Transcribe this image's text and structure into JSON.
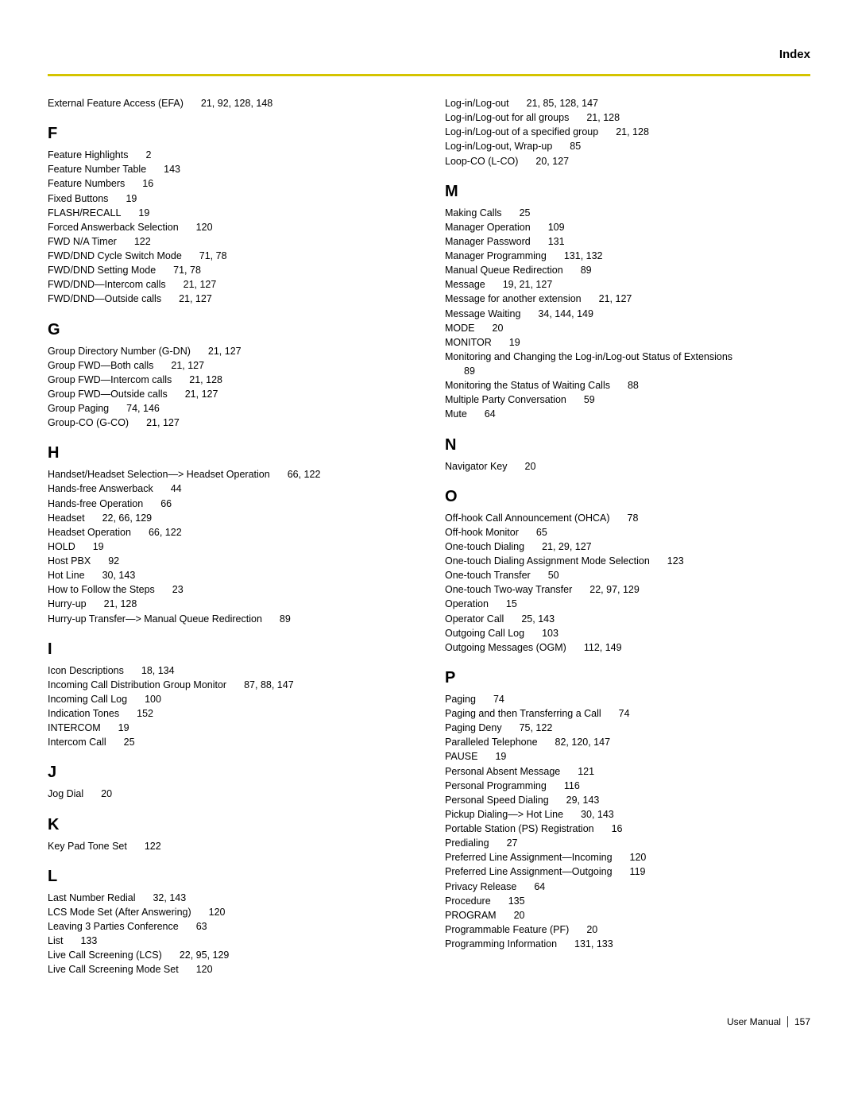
{
  "header": "Index",
  "footer": {
    "label": "User Manual",
    "page": "157"
  },
  "left": [
    {
      "type": "entry",
      "term": "External Feature Access (EFA)",
      "pages": "21, 92, 128, 148"
    },
    {
      "type": "letter",
      "text": "F"
    },
    {
      "type": "entry",
      "term": "Feature Highlights",
      "pages": "2"
    },
    {
      "type": "entry",
      "term": "Feature Number Table",
      "pages": "143"
    },
    {
      "type": "entry",
      "term": "Feature Numbers",
      "pages": "16"
    },
    {
      "type": "entry",
      "term": "Fixed Buttons",
      "pages": "19"
    },
    {
      "type": "entry",
      "term": "FLASH/RECALL",
      "pages": "19"
    },
    {
      "type": "entry",
      "term": "Forced Answerback Selection",
      "pages": "120"
    },
    {
      "type": "entry",
      "term": "FWD N/A Timer",
      "pages": "122"
    },
    {
      "type": "entry",
      "term": "FWD/DND Cycle Switch Mode",
      "pages": "71, 78"
    },
    {
      "type": "entry",
      "term": "FWD/DND Setting Mode",
      "pages": "71, 78"
    },
    {
      "type": "entry",
      "term": "FWD/DND—Intercom calls",
      "pages": "21, 127"
    },
    {
      "type": "entry",
      "term": "FWD/DND—Outside calls",
      "pages": "21, 127"
    },
    {
      "type": "letter",
      "text": "G"
    },
    {
      "type": "entry",
      "term": "Group Directory Number (G-DN)",
      "pages": "21, 127"
    },
    {
      "type": "entry",
      "term": "Group FWD—Both calls",
      "pages": "21, 127"
    },
    {
      "type": "entry",
      "term": "Group FWD—Intercom calls",
      "pages": "21, 128"
    },
    {
      "type": "entry",
      "term": "Group FWD—Outside calls",
      "pages": "21, 127"
    },
    {
      "type": "entry",
      "term": "Group Paging",
      "pages": "74, 146"
    },
    {
      "type": "entry",
      "term": "Group-CO (G-CO)",
      "pages": "21, 127"
    },
    {
      "type": "letter",
      "text": "H"
    },
    {
      "type": "entry",
      "term": "Handset/Headset Selection—> Headset Operation",
      "pages": "66, 122"
    },
    {
      "type": "entry",
      "term": "Hands-free Answerback",
      "pages": "44"
    },
    {
      "type": "entry",
      "term": "Hands-free Operation",
      "pages": "66"
    },
    {
      "type": "entry",
      "term": "Headset",
      "pages": "22, 66, 129"
    },
    {
      "type": "entry",
      "term": "Headset Operation",
      "pages": "66, 122"
    },
    {
      "type": "entry",
      "term": "HOLD",
      "pages": "19"
    },
    {
      "type": "entry",
      "term": "Host PBX",
      "pages": "92"
    },
    {
      "type": "entry",
      "term": "Hot Line",
      "pages": "30, 143"
    },
    {
      "type": "entry",
      "term": "How to Follow the Steps",
      "pages": "23"
    },
    {
      "type": "entry",
      "term": "Hurry-up",
      "pages": "21, 128"
    },
    {
      "type": "entry",
      "term": "Hurry-up Transfer—> Manual Queue Redirection",
      "pages": "89"
    },
    {
      "type": "letter",
      "text": "I"
    },
    {
      "type": "entry",
      "term": "Icon Descriptions",
      "pages": "18, 134"
    },
    {
      "type": "entry",
      "term": "Incoming Call Distribution Group Monitor",
      "pages": "87, 88, 147"
    },
    {
      "type": "entry",
      "term": "Incoming Call Log",
      "pages": "100"
    },
    {
      "type": "entry",
      "term": "Indication Tones",
      "pages": "152"
    },
    {
      "type": "entry",
      "term": "INTERCOM",
      "pages": "19"
    },
    {
      "type": "entry",
      "term": "Intercom Call",
      "pages": "25"
    },
    {
      "type": "letter",
      "text": "J"
    },
    {
      "type": "entry",
      "term": "Jog Dial",
      "pages": "20"
    },
    {
      "type": "letter",
      "text": "K"
    },
    {
      "type": "entry",
      "term": "Key Pad Tone Set",
      "pages": "122"
    },
    {
      "type": "letter",
      "text": "L"
    },
    {
      "type": "entry",
      "term": "Last Number Redial",
      "pages": "32, 143"
    },
    {
      "type": "entry",
      "term": "LCS Mode Set (After Answering)",
      "pages": "120"
    },
    {
      "type": "entry",
      "term": "Leaving 3 Parties Conference",
      "pages": "63"
    },
    {
      "type": "entry",
      "term": "List",
      "pages": "133"
    },
    {
      "type": "entry",
      "term": "Live Call Screening (LCS)",
      "pages": "22, 95, 129"
    },
    {
      "type": "entry",
      "term": "Live Call Screening Mode Set",
      "pages": "120"
    }
  ],
  "right": [
    {
      "type": "entry",
      "term": "Log-in/Log-out",
      "pages": "21, 85, 128, 147"
    },
    {
      "type": "entry",
      "term": "Log-in/Log-out for all groups",
      "pages": "21, 128"
    },
    {
      "type": "entry",
      "term": "Log-in/Log-out of a specified group",
      "pages": "21, 128"
    },
    {
      "type": "entry",
      "term": "Log-in/Log-out, Wrap-up",
      "pages": "85"
    },
    {
      "type": "entry",
      "term": "Loop-CO (L-CO)",
      "pages": "20, 127"
    },
    {
      "type": "letter",
      "text": "M"
    },
    {
      "type": "entry",
      "term": "Making Calls",
      "pages": "25"
    },
    {
      "type": "entry",
      "term": "Manager Operation",
      "pages": "109"
    },
    {
      "type": "entry",
      "term": "Manager Password",
      "pages": "131"
    },
    {
      "type": "entry",
      "term": "Manager Programming",
      "pages": "131, 132"
    },
    {
      "type": "entry",
      "term": "Manual Queue Redirection",
      "pages": "89"
    },
    {
      "type": "entry",
      "term": "Message",
      "pages": "19, 21, 127"
    },
    {
      "type": "entry",
      "term": "Message for another extension",
      "pages": "21, 127"
    },
    {
      "type": "entry",
      "term": "Message Waiting",
      "pages": "34, 144, 149"
    },
    {
      "type": "entry",
      "term": "MODE",
      "pages": "20"
    },
    {
      "type": "entry",
      "term": "MONITOR",
      "pages": "19"
    },
    {
      "type": "entry",
      "term": "Monitoring and Changing the Log-in/Log-out Status of Extensions",
      "pages": "89",
      "wrap": true
    },
    {
      "type": "entry",
      "term": "Monitoring the Status of Waiting Calls",
      "pages": "88"
    },
    {
      "type": "entry",
      "term": "Multiple Party Conversation",
      "pages": "59"
    },
    {
      "type": "entry",
      "term": "Mute",
      "pages": "64"
    },
    {
      "type": "letter",
      "text": "N"
    },
    {
      "type": "entry",
      "term": "Navigator Key",
      "pages": "20"
    },
    {
      "type": "letter",
      "text": "O"
    },
    {
      "type": "entry",
      "term": "Off-hook Call Announcement (OHCA)",
      "pages": "78"
    },
    {
      "type": "entry",
      "term": "Off-hook Monitor",
      "pages": "65"
    },
    {
      "type": "entry",
      "term": "One-touch Dialing",
      "pages": "21, 29, 127"
    },
    {
      "type": "entry",
      "term": "One-touch Dialing Assignment Mode Selection",
      "pages": "123"
    },
    {
      "type": "entry",
      "term": "One-touch Transfer",
      "pages": "50"
    },
    {
      "type": "entry",
      "term": "One-touch Two-way Transfer",
      "pages": "22, 97, 129"
    },
    {
      "type": "entry",
      "term": "Operation",
      "pages": "15"
    },
    {
      "type": "entry",
      "term": "Operator Call",
      "pages": "25, 143"
    },
    {
      "type": "entry",
      "term": "Outgoing Call Log",
      "pages": "103"
    },
    {
      "type": "entry",
      "term": "Outgoing Messages (OGM)",
      "pages": "112, 149"
    },
    {
      "type": "letter",
      "text": "P"
    },
    {
      "type": "entry",
      "term": "Paging",
      "pages": "74"
    },
    {
      "type": "entry",
      "term": "Paging and then Transferring a Call",
      "pages": "74"
    },
    {
      "type": "entry",
      "term": "Paging Deny",
      "pages": "75, 122"
    },
    {
      "type": "entry",
      "term": "Paralleled Telephone",
      "pages": "82, 120, 147"
    },
    {
      "type": "entry",
      "term": "PAUSE",
      "pages": "19"
    },
    {
      "type": "entry",
      "term": "Personal Absent Message",
      "pages": "121"
    },
    {
      "type": "entry",
      "term": "Personal Programming",
      "pages": "116"
    },
    {
      "type": "entry",
      "term": "Personal Speed Dialing",
      "pages": "29, 143"
    },
    {
      "type": "entry",
      "term": "Pickup Dialing—> Hot Line",
      "pages": "30, 143"
    },
    {
      "type": "entry",
      "term": "Portable Station (PS) Registration",
      "pages": "16"
    },
    {
      "type": "entry",
      "term": "Predialing",
      "pages": "27"
    },
    {
      "type": "entry",
      "term": "Preferred Line Assignment—Incoming",
      "pages": "120"
    },
    {
      "type": "entry",
      "term": "Preferred Line Assignment—Outgoing",
      "pages": "119"
    },
    {
      "type": "entry",
      "term": "Privacy Release",
      "pages": "64"
    },
    {
      "type": "entry",
      "term": "Procedure",
      "pages": "135"
    },
    {
      "type": "entry",
      "term": "PROGRAM",
      "pages": "20"
    },
    {
      "type": "entry",
      "term": "Programmable Feature (PF)",
      "pages": "20"
    },
    {
      "type": "entry",
      "term": "Programming Information",
      "pages": "131, 133"
    }
  ]
}
